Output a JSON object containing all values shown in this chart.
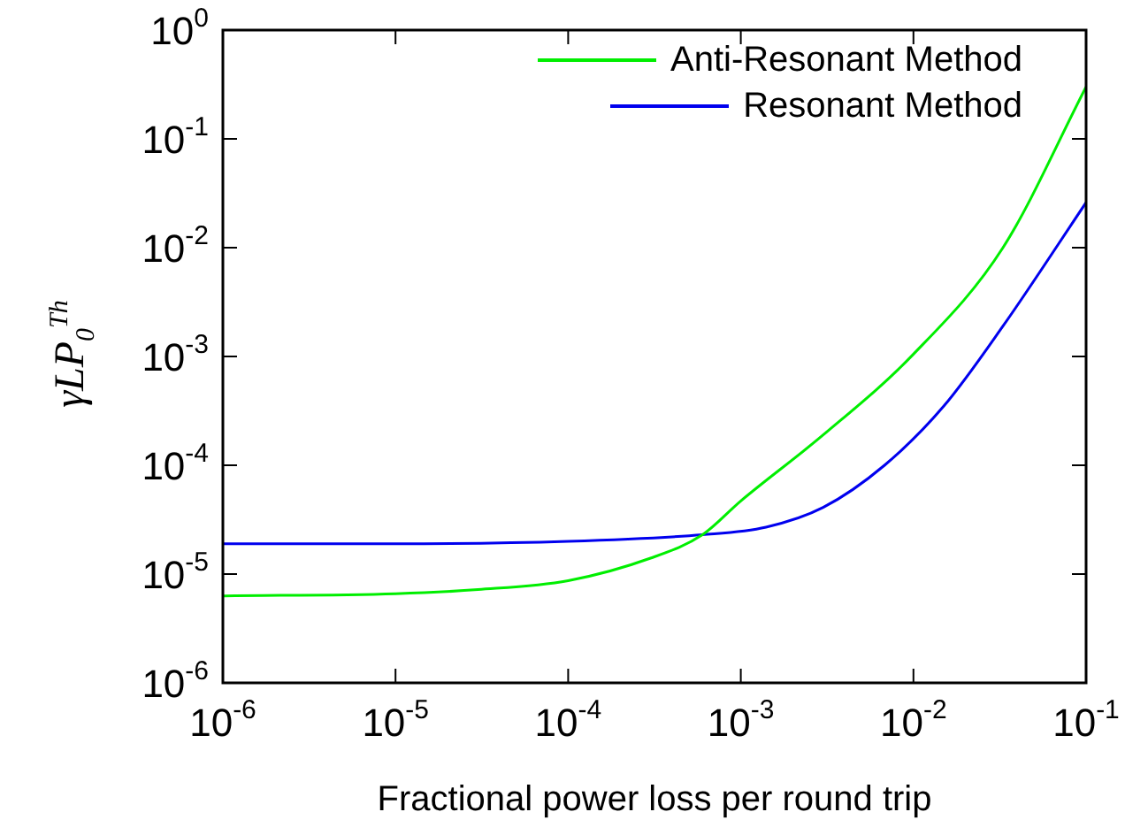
{
  "chart_data": {
    "type": "line",
    "xlabel": "Fractional power loss per round trip",
    "ylabel": "γLP$_{0}$$^{Th}$",
    "log": "xy",
    "xlim": [
      1e-06,
      0.1
    ],
    "ylim": [
      1e-06,
      1
    ],
    "xticks": [
      {
        "value": 1e-06,
        "label": "10$^{-6}$"
      },
      {
        "value": 1e-05,
        "label": "10$^{-5}$"
      },
      {
        "value": 0.0001,
        "label": "10$^{-4}$"
      },
      {
        "value": 0.001,
        "label": "10$^{-3}$"
      },
      {
        "value": 0.01,
        "label": "10$^{-2}$"
      },
      {
        "value": 0.1,
        "label": "10$^{-1}$"
      }
    ],
    "yticks": [
      {
        "value": 1e-06,
        "label": "10$^{-6}$"
      },
      {
        "value": 1e-05,
        "label": "10$^{-5}$"
      },
      {
        "value": 0.0001,
        "label": "10$^{-4}$"
      },
      {
        "value": 0.001,
        "label": "10$^{-3}$"
      },
      {
        "value": 0.01,
        "label": "10$^{-2}$"
      },
      {
        "value": 0.1,
        "label": "10$^{-1}$"
      },
      {
        "value": 1,
        "label": "10$^{0}$"
      }
    ],
    "grid": false,
    "legend": "top right",
    "marker": "none",
    "line_style": "solid",
    "series": [
      {
        "name": "Anti-Resonant Method",
        "color": "#00ee00",
        "x": [
          1e-06,
          1e-05,
          3e-05,
          0.0001,
          0.0003,
          0.0006,
          0.001,
          0.003,
          0.01,
          0.033,
          0.1
        ],
        "values": [
          6.3e-06,
          6.6e-06,
          7.2e-06,
          8.7e-06,
          1.4e-05,
          2.3e-05,
          4.7e-05,
          0.00019,
          0.00105,
          0.01,
          0.3
        ]
      },
      {
        "name": "Resonant Method",
        "color": "#0000ee",
        "x": [
          1e-06,
          1e-05,
          0.0001,
          0.0006,
          0.0014,
          0.003,
          0.0068,
          0.015,
          0.033,
          0.1
        ],
        "values": [
          1.9e-05,
          1.9e-05,
          2e-05,
          2.3e-05,
          2.7e-05,
          4.1e-05,
          0.0001,
          0.00035,
          0.0019,
          0.026
        ]
      }
    ]
  }
}
